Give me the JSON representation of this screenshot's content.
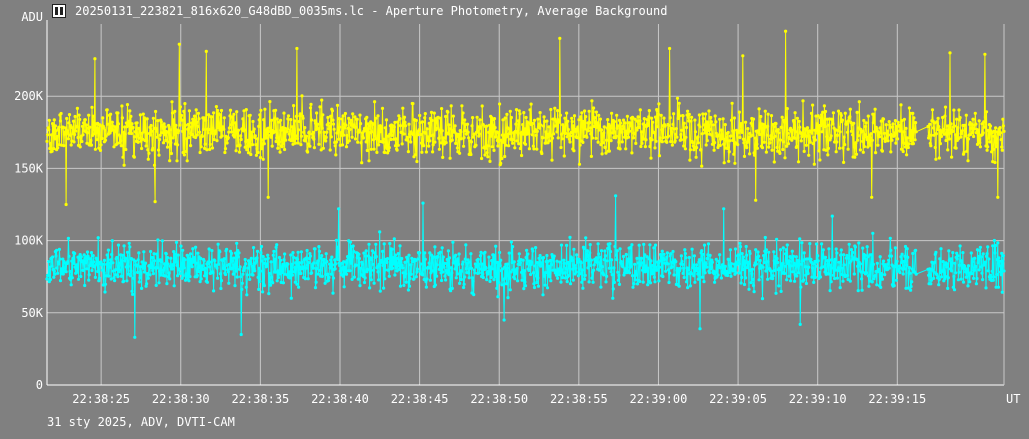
{
  "window": {
    "title": "20250131_223821_816x620_G48dBD_0035ms.lc - Aperture Photometry, Average Background",
    "icon": "lightcurve-app-icon"
  },
  "footer": {
    "info": "31 sty 2025, ADV, DVTI-CAM"
  },
  "colors": {
    "background": "#808080",
    "grid": "#c8c8c8",
    "axis": "#ffffff",
    "series_target": "#ffff00",
    "series_comparison": "#00ffff"
  },
  "chart_data": {
    "type": "line",
    "markers": true,
    "title": "",
    "ylabel": "ADU",
    "xlabel": "UT",
    "grid": true,
    "ylim": [
      0,
      250000
    ],
    "y_ticks": [
      {
        "value": 0,
        "label": "0"
      },
      {
        "value": 50000,
        "label": "50K"
      },
      {
        "value": 100000,
        "label": "100K"
      },
      {
        "value": 150000,
        "label": "150K"
      },
      {
        "value": 200000,
        "label": "200K"
      }
    ],
    "x_range": [
      "22:38:21.6",
      "22:39:21.7"
    ],
    "x_ticks": [
      "22:38:25",
      "22:38:30",
      "22:38:35",
      "22:38:40",
      "22:38:45",
      "22:38:50",
      "22:38:55",
      "22:39:00",
      "22:39:05",
      "22:39:10",
      "22:39:15"
    ],
    "gaps": [
      {
        "from": "22:39:16.2",
        "to": "22:39:16.9"
      }
    ],
    "series": [
      {
        "mean": 175000,
        "typical_range": [
          150000,
          200000
        ],
        "min": 125000,
        "max": 245000,
        "peaks": [
          {
            "x": "22:38:24.6",
            "y": 226000
          },
          {
            "x": "22:38:29.9",
            "y": 236000
          },
          {
            "x": "22:38:31.6",
            "y": 231000
          },
          {
            "x": "22:38:37.3",
            "y": 233000
          },
          {
            "x": "22:38:53.8",
            "y": 240000
          },
          {
            "x": "22:39:00.7",
            "y": 233000
          },
          {
            "x": "22:39:05.3",
            "y": 228000
          },
          {
            "x": "22:39:08.0",
            "y": 245000
          },
          {
            "x": "22:39:13.4",
            "y": 226000
          },
          {
            "x": "22:39:18.3",
            "y": 230000
          },
          {
            "x": "22:39:20.5",
            "y": 229000
          }
        ],
        "troughs": [
          {
            "x": "22:38:22.8",
            "y": 125000
          },
          {
            "x": "22:38:28.4",
            "y": 127000
          },
          {
            "x": "22:38:35.5",
            "y": 130000
          },
          {
            "x": "22:39:06.1",
            "y": 128000
          },
          {
            "x": "22:39:13.4",
            "y": 130000
          },
          {
            "x": "22:39:21.3",
            "y": 130000
          }
        ]
      },
      {
        "mean": 82000,
        "typical_range": [
          60000,
          105000
        ],
        "min": 33000,
        "max": 131000,
        "peaks": [
          {
            "x": "22:38:39.9",
            "y": 122000
          },
          {
            "x": "22:38:45.2",
            "y": 126000
          },
          {
            "x": "22:38:57.3",
            "y": 131000
          },
          {
            "x": "22:39:04.1",
            "y": 122000
          },
          {
            "x": "22:39:10.9",
            "y": 117000
          }
        ],
        "troughs": [
          {
            "x": "22:38:27.1",
            "y": 33000
          },
          {
            "x": "22:38:33.8",
            "y": 35000
          },
          {
            "x": "22:38:50.3",
            "y": 45000
          },
          {
            "x": "22:39:02.6",
            "y": 39000
          },
          {
            "x": "22:39:08.9",
            "y": 42000
          }
        ]
      }
    ]
  }
}
